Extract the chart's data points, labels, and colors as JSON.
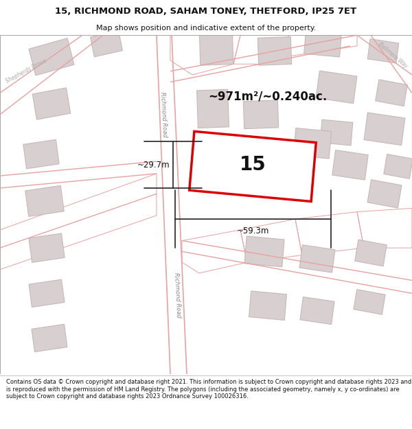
{
  "title_line1": "15, RICHMOND ROAD, SAHAM TONEY, THETFORD, IP25 7ET",
  "title_line2": "Map shows position and indicative extent of the property.",
  "footer_text": "Contains OS data © Crown copyright and database right 2021. This information is subject to Crown copyright and database rights 2023 and is reproduced with the permission of HM Land Registry. The polygons (including the associated geometry, namely x, y co-ordinates) are subject to Crown copyright and database rights 2023 Ordnance Survey 100026316.",
  "area_label": "~971m²/~0.240ac.",
  "number_label": "15",
  "dim_h_label": "~29.7m",
  "dim_w_label": "~59.3m",
  "road_label_top": "Richmond Road",
  "road_label_bottom": "Richmond Road",
  "road_label_left": "Shepherds Drove",
  "road_label_right": "Bellmere Way",
  "bg_map_color": "#f9f6f6",
  "plot_fill": "#ffffff",
  "plot_edge_color": "#dd0000",
  "road_line_color": "#e8a0a0",
  "building_fill": "#d8d0d0",
  "building_edge": "#c8b8b8",
  "dim_line_color": "#222222",
  "text_color": "#111111",
  "road_outline_color": "#e8a0a0"
}
